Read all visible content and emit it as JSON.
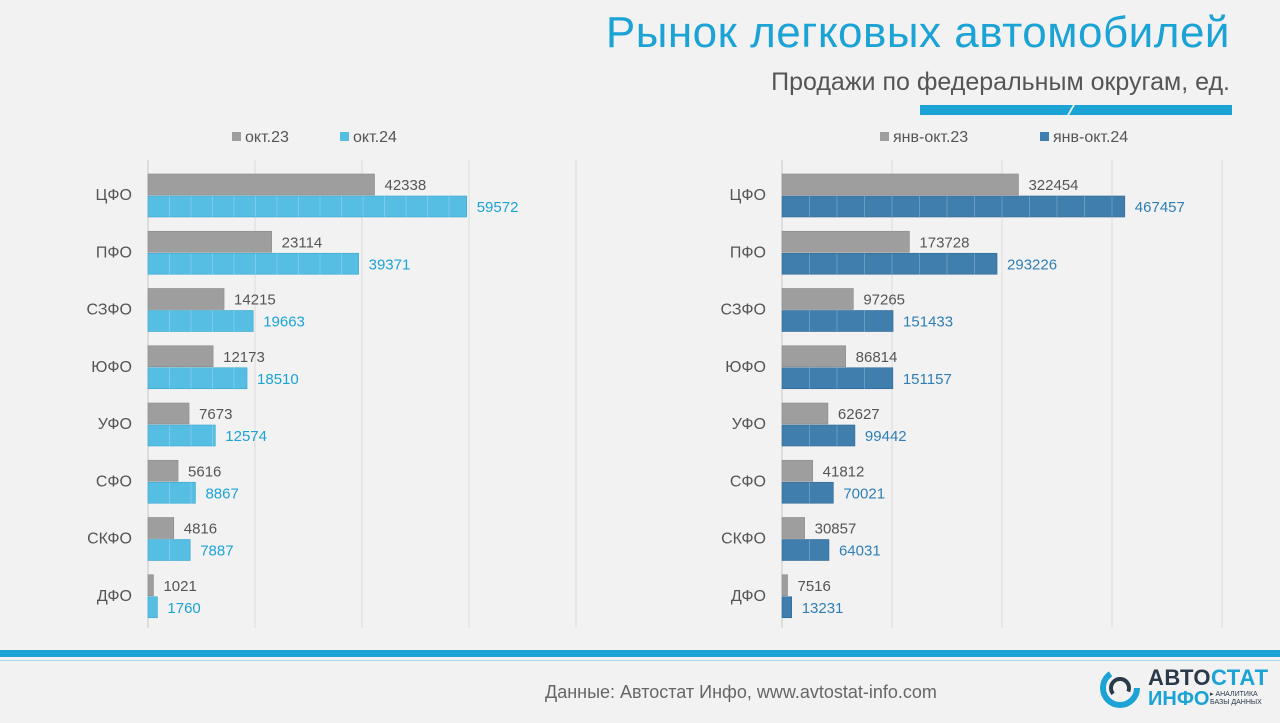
{
  "header": {
    "title": "Рынок легковых автомобилей",
    "subtitle": "Продажи по федеральным округам, ед."
  },
  "footer": {
    "source": "Данные: Автостат Инфо, www.avtostat-info.com"
  },
  "logo": {
    "line1_a": "АВТО",
    "line1_b": "СТАТ",
    "line2": "ИНФО",
    "tagline_1": "▸ АНАЛИТИКА",
    "tagline_2": "БАЗЫ ДАННЫХ"
  },
  "colors": {
    "title_blue": "#1ba3d6",
    "gray_series": "#9e9e9e",
    "light_blue_series": "#56bde3",
    "dark_blue_series": "#3f7ead",
    "background": "#f2f2f2"
  },
  "chart_data": [
    {
      "type": "bar",
      "orientation": "horizontal",
      "categories": [
        "ЦФО",
        "ПФО",
        "СЗФО",
        "ЮФО",
        "УФО",
        "СФО",
        "СКФО",
        "ДФО"
      ],
      "series": [
        {
          "name": "окт.23",
          "color": "#9e9e9e",
          "values": [
            42338,
            23114,
            14215,
            12173,
            7673,
            5616,
            4816,
            1021
          ]
        },
        {
          "name": "окт.24",
          "color": "#56bde3",
          "values": [
            59572,
            39371,
            19663,
            18510,
            12574,
            8867,
            7887,
            1760
          ]
        }
      ],
      "xlim": [
        0,
        80000
      ],
      "grid": true,
      "legend": "top-center"
    },
    {
      "type": "bar",
      "orientation": "horizontal",
      "categories": [
        "ЦФО",
        "ПФО",
        "СЗФО",
        "ЮФО",
        "УФО",
        "СФО",
        "СКФО",
        "ДФО"
      ],
      "series": [
        {
          "name": "янв-окт.23",
          "color": "#9e9e9e",
          "values": [
            322454,
            173728,
            97265,
            86814,
            62627,
            41812,
            30857,
            7516
          ]
        },
        {
          "name": "янв-окт.24",
          "color": "#3f7ead",
          "values": [
            467457,
            293226,
            151433,
            151157,
            99442,
            70021,
            64031,
            13231
          ]
        }
      ],
      "xlim": [
        0,
        600000
      ],
      "grid": true,
      "legend": "top-center"
    }
  ]
}
